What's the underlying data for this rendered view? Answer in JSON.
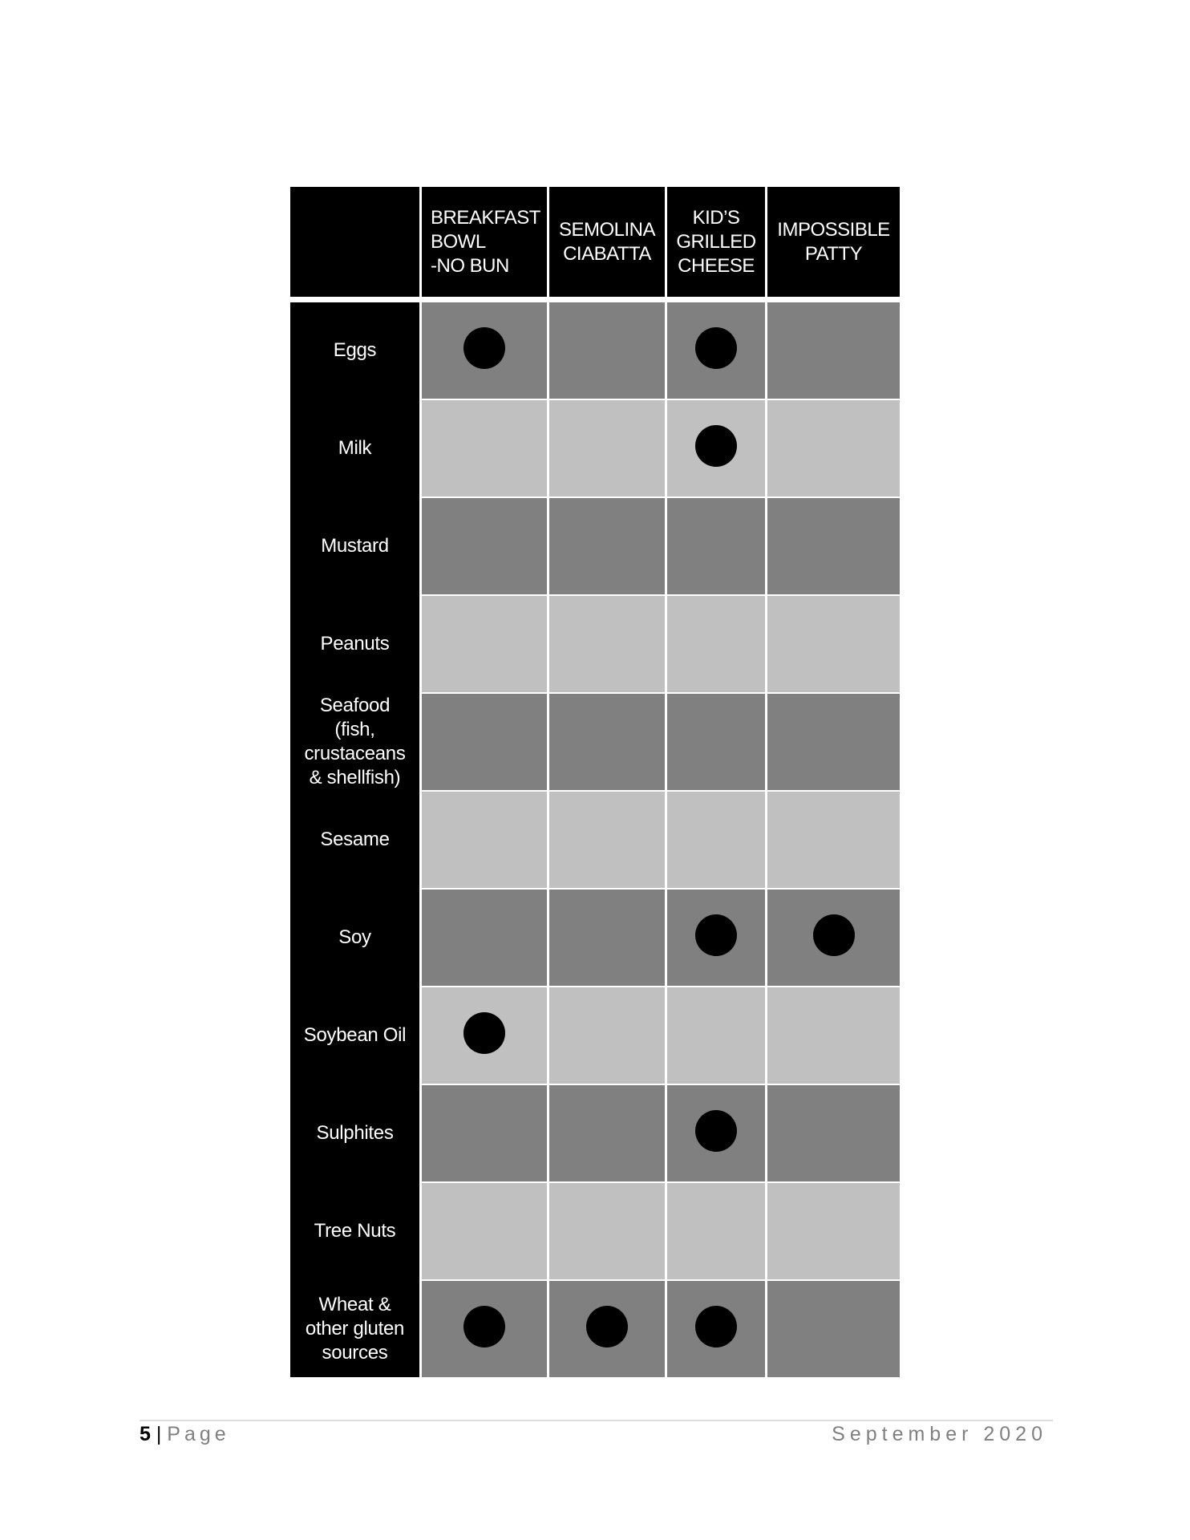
{
  "colors": {
    "dark_cell": "#808080",
    "light_cell": "#c0c0c0",
    "header": "#000000",
    "marker": "#000000"
  },
  "table": {
    "columns": [
      {
        "label": "BREAKFAST\nBOWL\n-NO BUN",
        "align": "left"
      },
      {
        "label": "SEMOLINA\nCIABATTA",
        "align": "center"
      },
      {
        "label": "KID’S\nGRILLED\nCHEESE",
        "align": "center"
      },
      {
        "label": "IMPOSSIBLE\nPATTY",
        "align": "center"
      }
    ],
    "rows": [
      {
        "label": "Eggs",
        "contains": [
          true,
          false,
          true,
          false
        ]
      },
      {
        "label": "Milk",
        "contains": [
          false,
          false,
          true,
          false
        ]
      },
      {
        "label": "Mustard",
        "contains": [
          false,
          false,
          false,
          false
        ]
      },
      {
        "label": "Peanuts",
        "contains": [
          false,
          false,
          false,
          false
        ]
      },
      {
        "label": "Seafood\n(fish,\ncrustaceans\n& shellfish)",
        "contains": [
          false,
          false,
          false,
          false
        ]
      },
      {
        "label": "Sesame",
        "contains": [
          false,
          false,
          false,
          false
        ]
      },
      {
        "label": "Soy",
        "contains": [
          false,
          false,
          true,
          true
        ]
      },
      {
        "label": "Soybean Oil",
        "contains": [
          true,
          false,
          false,
          false
        ]
      },
      {
        "label": "Sulphites",
        "contains": [
          false,
          false,
          true,
          false
        ]
      },
      {
        "label": "Tree Nuts",
        "contains": [
          false,
          false,
          false,
          false
        ]
      },
      {
        "label": "Wheat &\nother gluten\nsources",
        "contains": [
          true,
          true,
          true,
          false
        ]
      }
    ]
  },
  "footer": {
    "page_number": "5",
    "separator": " | ",
    "page_word": "Page",
    "date": "September 2020"
  }
}
